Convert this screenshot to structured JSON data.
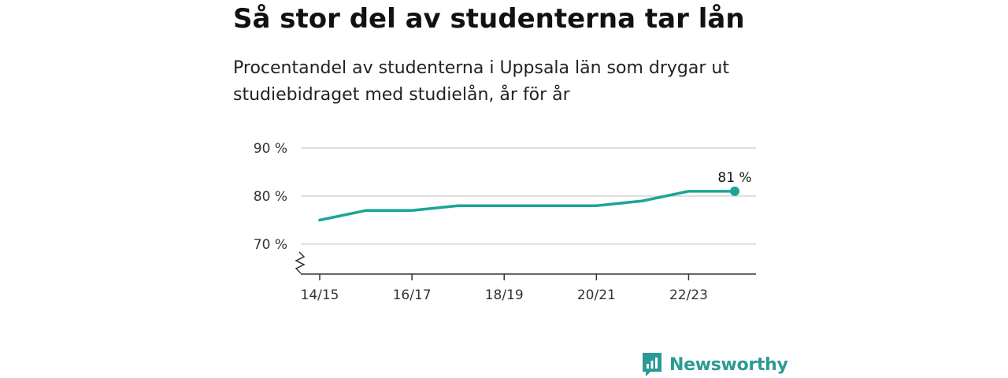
{
  "title": "Så stor del av studenterna tar lån",
  "subtitle": "Procentandel av studenterna i Uppsala län som drygar ut studiebidraget med studielån, år för år",
  "brand": {
    "name": "Newsworthy",
    "color": "#2c9a94"
  },
  "chart_data": {
    "type": "line",
    "x": [
      "14/15",
      "15/16",
      "16/17",
      "17/18",
      "18/19",
      "19/20",
      "20/21",
      "21/22",
      "22/23",
      "23/24"
    ],
    "x_tick_labels": [
      "14/15",
      "16/17",
      "18/19",
      "20/21",
      "22/23"
    ],
    "series": [
      {
        "values": [
          75,
          77,
          77,
          78,
          78,
          78,
          78,
          79,
          81,
          81
        ],
        "color": "#1aa596"
      }
    ],
    "y_ticks": [
      70,
      80,
      90
    ],
    "y_tick_labels": [
      "70 %",
      "80 %",
      "90 %"
    ],
    "ylim": [
      64,
      90
    ],
    "axis_break": true,
    "grid": true,
    "end_label": "81 %"
  }
}
